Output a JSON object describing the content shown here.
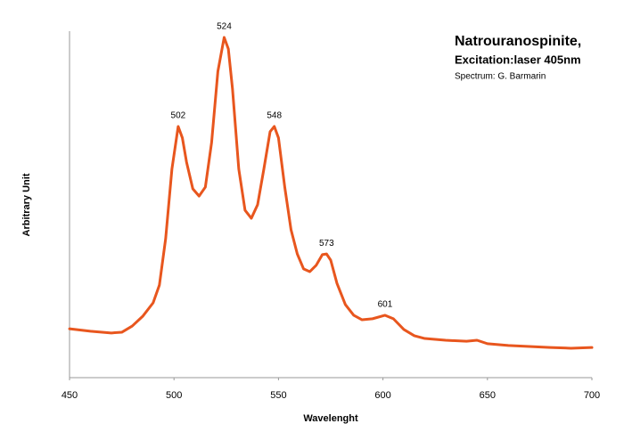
{
  "chart_data": {
    "type": "line",
    "title": "Natrouranospinite,",
    "subtitle": "Excitation:laser 405nm",
    "credit": "Spectrum: G. Barmarin",
    "x_label": "Wavelenght",
    "y_label": "Arbitrary Unit",
    "color": "#e8561e",
    "x": [
      450,
      460,
      470,
      475,
      480,
      485,
      490,
      493,
      496,
      499,
      502,
      504,
      506,
      509,
      512,
      515,
      518,
      521,
      524,
      526,
      528,
      531,
      534,
      537,
      540,
      543,
      546,
      548,
      550,
      553,
      556,
      559,
      562,
      565,
      568,
      571,
      573,
      575,
      578,
      582,
      586,
      590,
      595,
      601,
      605,
      610,
      615,
      620,
      630,
      640,
      645,
      650,
      660,
      670,
      680,
      690,
      700
    ],
    "values": [
      14.1,
      13.4,
      12.9,
      13.1,
      14.9,
      17.7,
      21.6,
      26.7,
      40.1,
      60.2,
      72.5,
      69.2,
      62.2,
      54.5,
      52.4,
      55.0,
      67.9,
      88.4,
      98.2,
      94.9,
      83.3,
      60.2,
      48.3,
      46.0,
      49.9,
      60.2,
      71.0,
      72.5,
      69.2,
      55.0,
      42.7,
      35.7,
      31.4,
      30.6,
      32.4,
      35.5,
      35.7,
      33.9,
      27.2,
      21.1,
      18.0,
      16.7,
      17.0,
      18.0,
      17.0,
      13.9,
      12.1,
      11.3,
      10.8,
      10.5,
      10.8,
      9.8,
      9.3,
      9.0,
      8.7,
      8.5,
      8.7
    ],
    "xlim": [
      450,
      700
    ],
    "xticks": [
      450,
      500,
      550,
      600,
      650,
      700
    ],
    "ylim": [
      0,
      100
    ],
    "annotations": [
      {
        "text": "502",
        "x": 502,
        "y": 72.5
      },
      {
        "text": "524",
        "x": 524,
        "y": 98.2
      },
      {
        "text": "548",
        "x": 548,
        "y": 72.5
      },
      {
        "text": "573",
        "x": 573,
        "y": 35.7
      },
      {
        "text": "601",
        "x": 601,
        "y": 18.0
      }
    ]
  }
}
